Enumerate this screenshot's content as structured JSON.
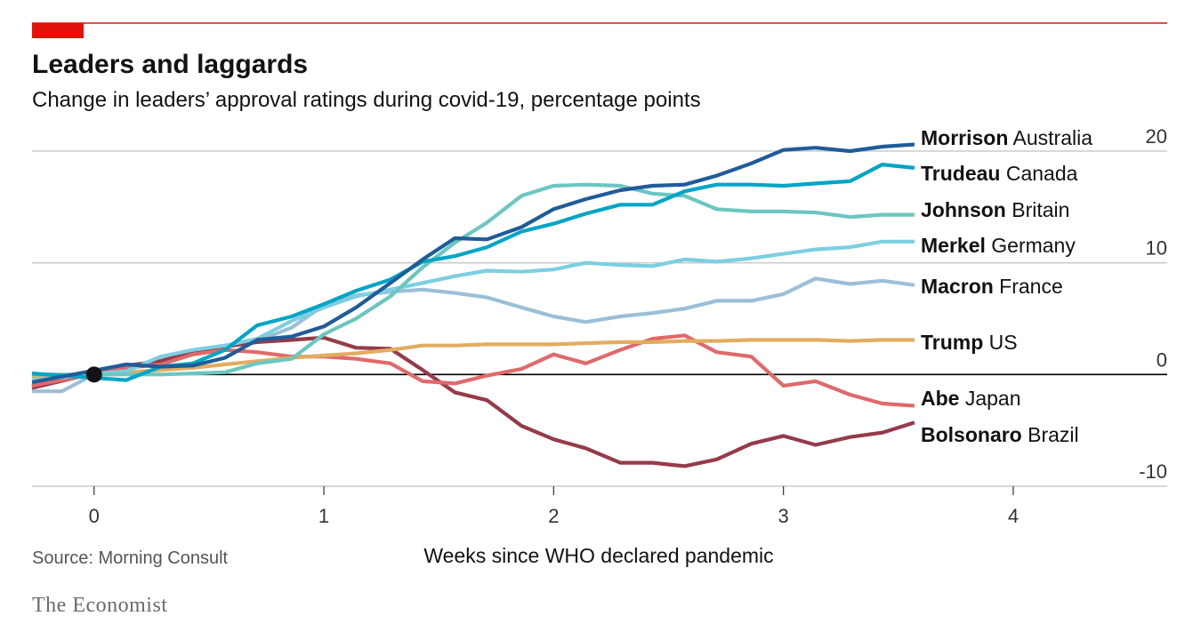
{
  "header": {
    "title": "Leaders and laggards",
    "subtitle": "Change in leaders’ approval ratings during covid-19, percentage points"
  },
  "footer": {
    "source": "Source: Morning Consult",
    "brand": "The Economist"
  },
  "colors": {
    "accent": "#e3120b",
    "gridline": "#cccccc",
    "zeroline": "#000000"
  },
  "chart_data": {
    "type": "line",
    "title": "Leaders and laggards",
    "subtitle": "Change in leaders’ approval ratings during covid-19, percentage points",
    "xlabel": "Weeks since WHO declared pandemic",
    "ylabel": "",
    "xlim": [
      -0.27,
      4.67
    ],
    "ylim": [
      -10,
      20
    ],
    "x_ticks": [
      "0",
      "1",
      "2",
      "3",
      "4"
    ],
    "y_ticks": [
      "20",
      "10",
      "0",
      "-10"
    ],
    "grid": true,
    "legend": "direct labels at line ends, right",
    "origin_marker": [
      0,
      0
    ],
    "series": [
      {
        "name": "Morrison",
        "country": "Australia",
        "color": "#1f5c99",
        "x": [
          -0.27,
          0.14,
          0.29,
          0.43,
          0.57,
          0.71,
          0.86,
          1.0,
          1.14,
          1.29,
          1.43,
          1.57,
          1.71,
          1.86,
          2.0,
          2.14,
          2.29,
          2.43,
          2.57,
          2.71,
          2.86,
          3.0,
          3.14,
          3.29,
          3.43,
          3.57
        ],
        "y": [
          -0.7,
          0.9,
          0.7,
          0.8,
          1.5,
          3.1,
          3.4,
          4.3,
          6.0,
          8.2,
          10.3,
          12.2,
          12.1,
          13.2,
          14.8,
          15.7,
          16.5,
          16.9,
          17.0,
          17.8,
          18.9,
          20.1,
          20.3,
          20.0,
          20.4,
          20.6
        ]
      },
      {
        "name": "Trudeau",
        "country": "Canada",
        "color": "#00a5c5",
        "x": [
          -0.27,
          0.14,
          0.29,
          0.43,
          0.57,
          0.71,
          0.86,
          1.0,
          1.14,
          1.29,
          1.43,
          1.57,
          1.71,
          1.86,
          2.0,
          2.14,
          2.29,
          2.43,
          2.57,
          2.71,
          2.86,
          3.0,
          3.14,
          3.29,
          3.43,
          3.57
        ],
        "y": [
          0.1,
          -0.5,
          0.7,
          1.0,
          2.2,
          4.4,
          5.2,
          6.3,
          7.5,
          8.5,
          10.1,
          10.6,
          11.4,
          12.8,
          13.5,
          14.4,
          15.2,
          15.2,
          16.4,
          17.0,
          17.0,
          16.9,
          17.1,
          17.3,
          18.8,
          18.5
        ]
      },
      {
        "name": "Johnson",
        "country": "Britain",
        "color": "#6bc6c0",
        "x": [
          -0.27,
          0.14,
          0.29,
          0.43,
          0.57,
          0.71,
          0.86,
          1.0,
          1.14,
          1.29,
          1.43,
          1.57,
          1.71,
          1.86,
          2.0,
          2.14,
          2.29,
          2.43,
          2.57,
          2.71,
          2.86,
          3.0,
          3.14,
          3.29,
          3.43,
          3.57
        ],
        "y": [
          0.0,
          0.0,
          0.0,
          0.1,
          0.2,
          1.0,
          1.4,
          3.6,
          5.0,
          7.0,
          9.6,
          11.8,
          13.6,
          16.0,
          16.9,
          17.0,
          16.9,
          16.2,
          16.0,
          14.8,
          14.6,
          14.6,
          14.5,
          14.1,
          14.3,
          14.3
        ]
      },
      {
        "name": "Merkel",
        "country": "Germany",
        "color": "#7bcfe0",
        "x": [
          -0.27,
          0.14,
          0.29,
          0.43,
          0.57,
          0.71,
          0.86,
          1.0,
          1.14,
          1.29,
          1.43,
          1.57,
          1.71,
          1.86,
          2.0,
          2.14,
          2.29,
          2.43,
          2.57,
          2.71,
          2.86,
          3.0,
          3.14,
          3.29,
          3.43,
          3.57
        ],
        "y": [
          -0.5,
          0.3,
          1.6,
          2.2,
          2.6,
          3.2,
          4.8,
          6.0,
          7.0,
          7.6,
          8.2,
          8.8,
          9.3,
          9.2,
          9.4,
          10.0,
          9.8,
          9.7,
          10.3,
          10.1,
          10.4,
          10.8,
          11.2,
          11.4,
          11.9,
          11.9
        ]
      },
      {
        "name": "Macron",
        "country": "France",
        "color": "#9bbfd8",
        "x": [
          -0.27,
          -0.14,
          0.0,
          0.14,
          0.29,
          0.43,
          0.57,
          0.71,
          0.86,
          1.0,
          1.14,
          1.29,
          1.43,
          1.57,
          1.71,
          1.86,
          2.0,
          2.14,
          2.29,
          2.43,
          2.57,
          2.71,
          2.86,
          3.0,
          3.14,
          3.29,
          3.43,
          3.57
        ],
        "y": [
          -1.5,
          -1.5,
          0.0,
          0.6,
          1.4,
          2.0,
          2.6,
          3.0,
          4.2,
          6.2,
          7.1,
          7.4,
          7.6,
          7.3,
          6.9,
          6.0,
          5.2,
          4.7,
          5.2,
          5.5,
          5.9,
          6.6,
          6.6,
          7.2,
          8.6,
          8.1,
          8.4,
          8.0
        ]
      },
      {
        "name": "Trump",
        "country": "US",
        "color": "#e2ac5f",
        "x": [
          -0.27,
          0.14,
          0.29,
          0.43,
          0.57,
          0.71,
          0.86,
          1.0,
          1.14,
          1.29,
          1.43,
          1.57,
          1.71,
          1.86,
          2.0,
          2.14,
          2.29,
          2.43,
          2.57,
          2.71,
          2.86,
          3.0,
          3.14,
          3.29,
          3.43,
          3.57
        ],
        "y": [
          -0.3,
          0.2,
          0.4,
          0.6,
          0.9,
          1.2,
          1.5,
          1.7,
          1.9,
          2.2,
          2.6,
          2.6,
          2.7,
          2.7,
          2.7,
          2.8,
          2.9,
          2.9,
          3.0,
          3.0,
          3.1,
          3.1,
          3.1,
          3.0,
          3.1,
          3.1
        ]
      },
      {
        "name": "Abe",
        "country": "Japan",
        "color": "#e0696a",
        "x": [
          -0.27,
          0.14,
          0.29,
          0.43,
          0.57,
          0.71,
          0.86,
          1.0,
          1.14,
          1.29,
          1.43,
          1.57,
          1.71,
          1.86,
          2.0,
          2.14,
          2.29,
          2.43,
          2.57,
          2.71,
          2.86,
          3.0,
          3.14,
          3.29,
          3.43,
          3.57
        ],
        "y": [
          -1.0,
          0.6,
          0.9,
          1.8,
          2.2,
          2.0,
          1.6,
          1.6,
          1.4,
          1.0,
          -0.6,
          -0.8,
          -0.1,
          0.5,
          1.8,
          1.0,
          2.2,
          3.2,
          3.5,
          2.0,
          1.6,
          -1.0,
          -0.6,
          -1.8,
          -2.6,
          -2.8
        ]
      },
      {
        "name": "Bolsonaro",
        "country": "Brazil",
        "color": "#963a4a",
        "x": [
          -0.27,
          0.14,
          0.29,
          0.43,
          0.57,
          0.71,
          0.86,
          1.0,
          1.14,
          1.29,
          1.43,
          1.57,
          1.71,
          1.86,
          2.0,
          2.14,
          2.29,
          2.43,
          2.57,
          2.71,
          2.86,
          3.0,
          3.14,
          3.29,
          3.43,
          3.57
        ],
        "y": [
          -1.2,
          0.8,
          1.2,
          2.0,
          2.5,
          2.9,
          3.1,
          3.3,
          2.4,
          2.3,
          0.4,
          -1.6,
          -2.3,
          -4.6,
          -5.8,
          -6.6,
          -7.9,
          -7.9,
          -8.2,
          -7.6,
          -6.2,
          -5.5,
          -6.3,
          -5.6,
          -5.2,
          -4.3
        ]
      }
    ]
  }
}
